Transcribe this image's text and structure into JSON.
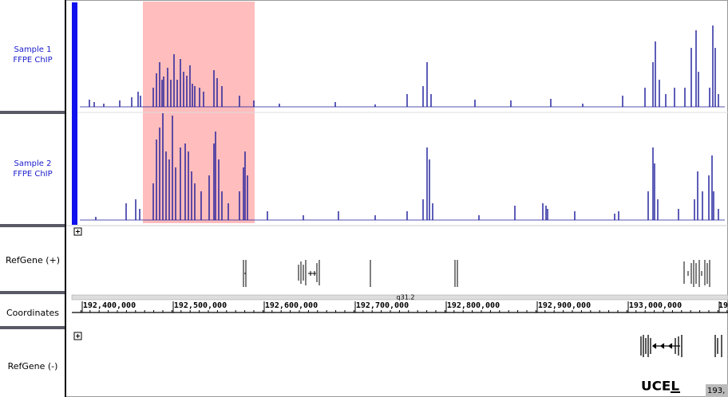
{
  "tracks": [
    {
      "label_lines": [
        "Sample 1",
        "FFPE ChIP"
      ]
    },
    {
      "label_lines": [
        "Sample 2",
        "FFPE ChIP"
      ]
    },
    {
      "label": "RefGene (+)"
    },
    {
      "label": "Coordinates"
    },
    {
      "label": "RefGene (-)"
    }
  ],
  "coordinates": {
    "band": "q31.2",
    "ticks": [
      "192,400,000",
      "192,500,000",
      "192,600,000",
      "192,700,000",
      "192,800,000",
      "192,900,000",
      "193,000,000",
      "19"
    ]
  },
  "gene_label": "UCEL",
  "corner_label": "193,"
}
